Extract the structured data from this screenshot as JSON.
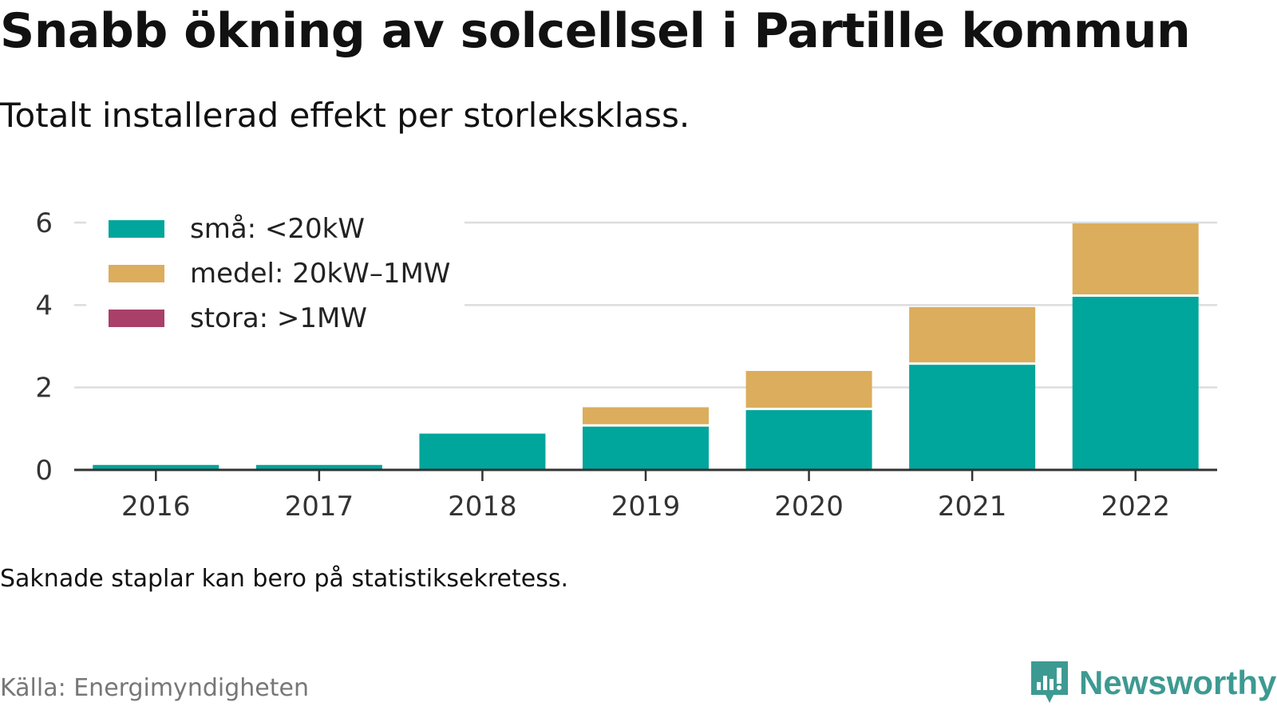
{
  "header": {
    "title": "Snabb ökning av solcellsel i Partille kommun",
    "subtitle": "Totalt installerad effekt per storleksklass."
  },
  "footer": {
    "note": "Saknade staplar kan bero på statistiksekretess.",
    "source": "Källa: Energimyndigheten",
    "brand": "Newsworthy",
    "brand_icon": "bar-chart-speech-bubble-icon"
  },
  "chart_data": {
    "type": "bar",
    "stacked": true,
    "categories": [
      "2016",
      "2017",
      "2018",
      "2019",
      "2020",
      "2021",
      "2022"
    ],
    "series": [
      {
        "name": "små: <20kW",
        "color": "#00a59b",
        "values": [
          0.12,
          0.12,
          0.88,
          1.05,
          1.45,
          2.55,
          4.2
        ]
      },
      {
        "name": "medel: 20kW–1MW",
        "color": "#dbad5c",
        "values": [
          0,
          0,
          0,
          0.47,
          0.95,
          1.4,
          1.78
        ]
      },
      {
        "name": "stora: >1MW",
        "color": "#a8406a",
        "values": [
          0,
          0,
          0,
          0,
          0,
          0,
          0
        ]
      }
    ],
    "y_ticks": [
      0,
      2,
      4,
      6
    ],
    "ylim": [
      0,
      6
    ],
    "grid": true,
    "legend_position": "top-left",
    "title": "Snabb ökning av solcellsel i Partille kommun",
    "subtitle": "Totalt installerad effekt per storleksklass.",
    "xlabel": "",
    "ylabel": ""
  }
}
